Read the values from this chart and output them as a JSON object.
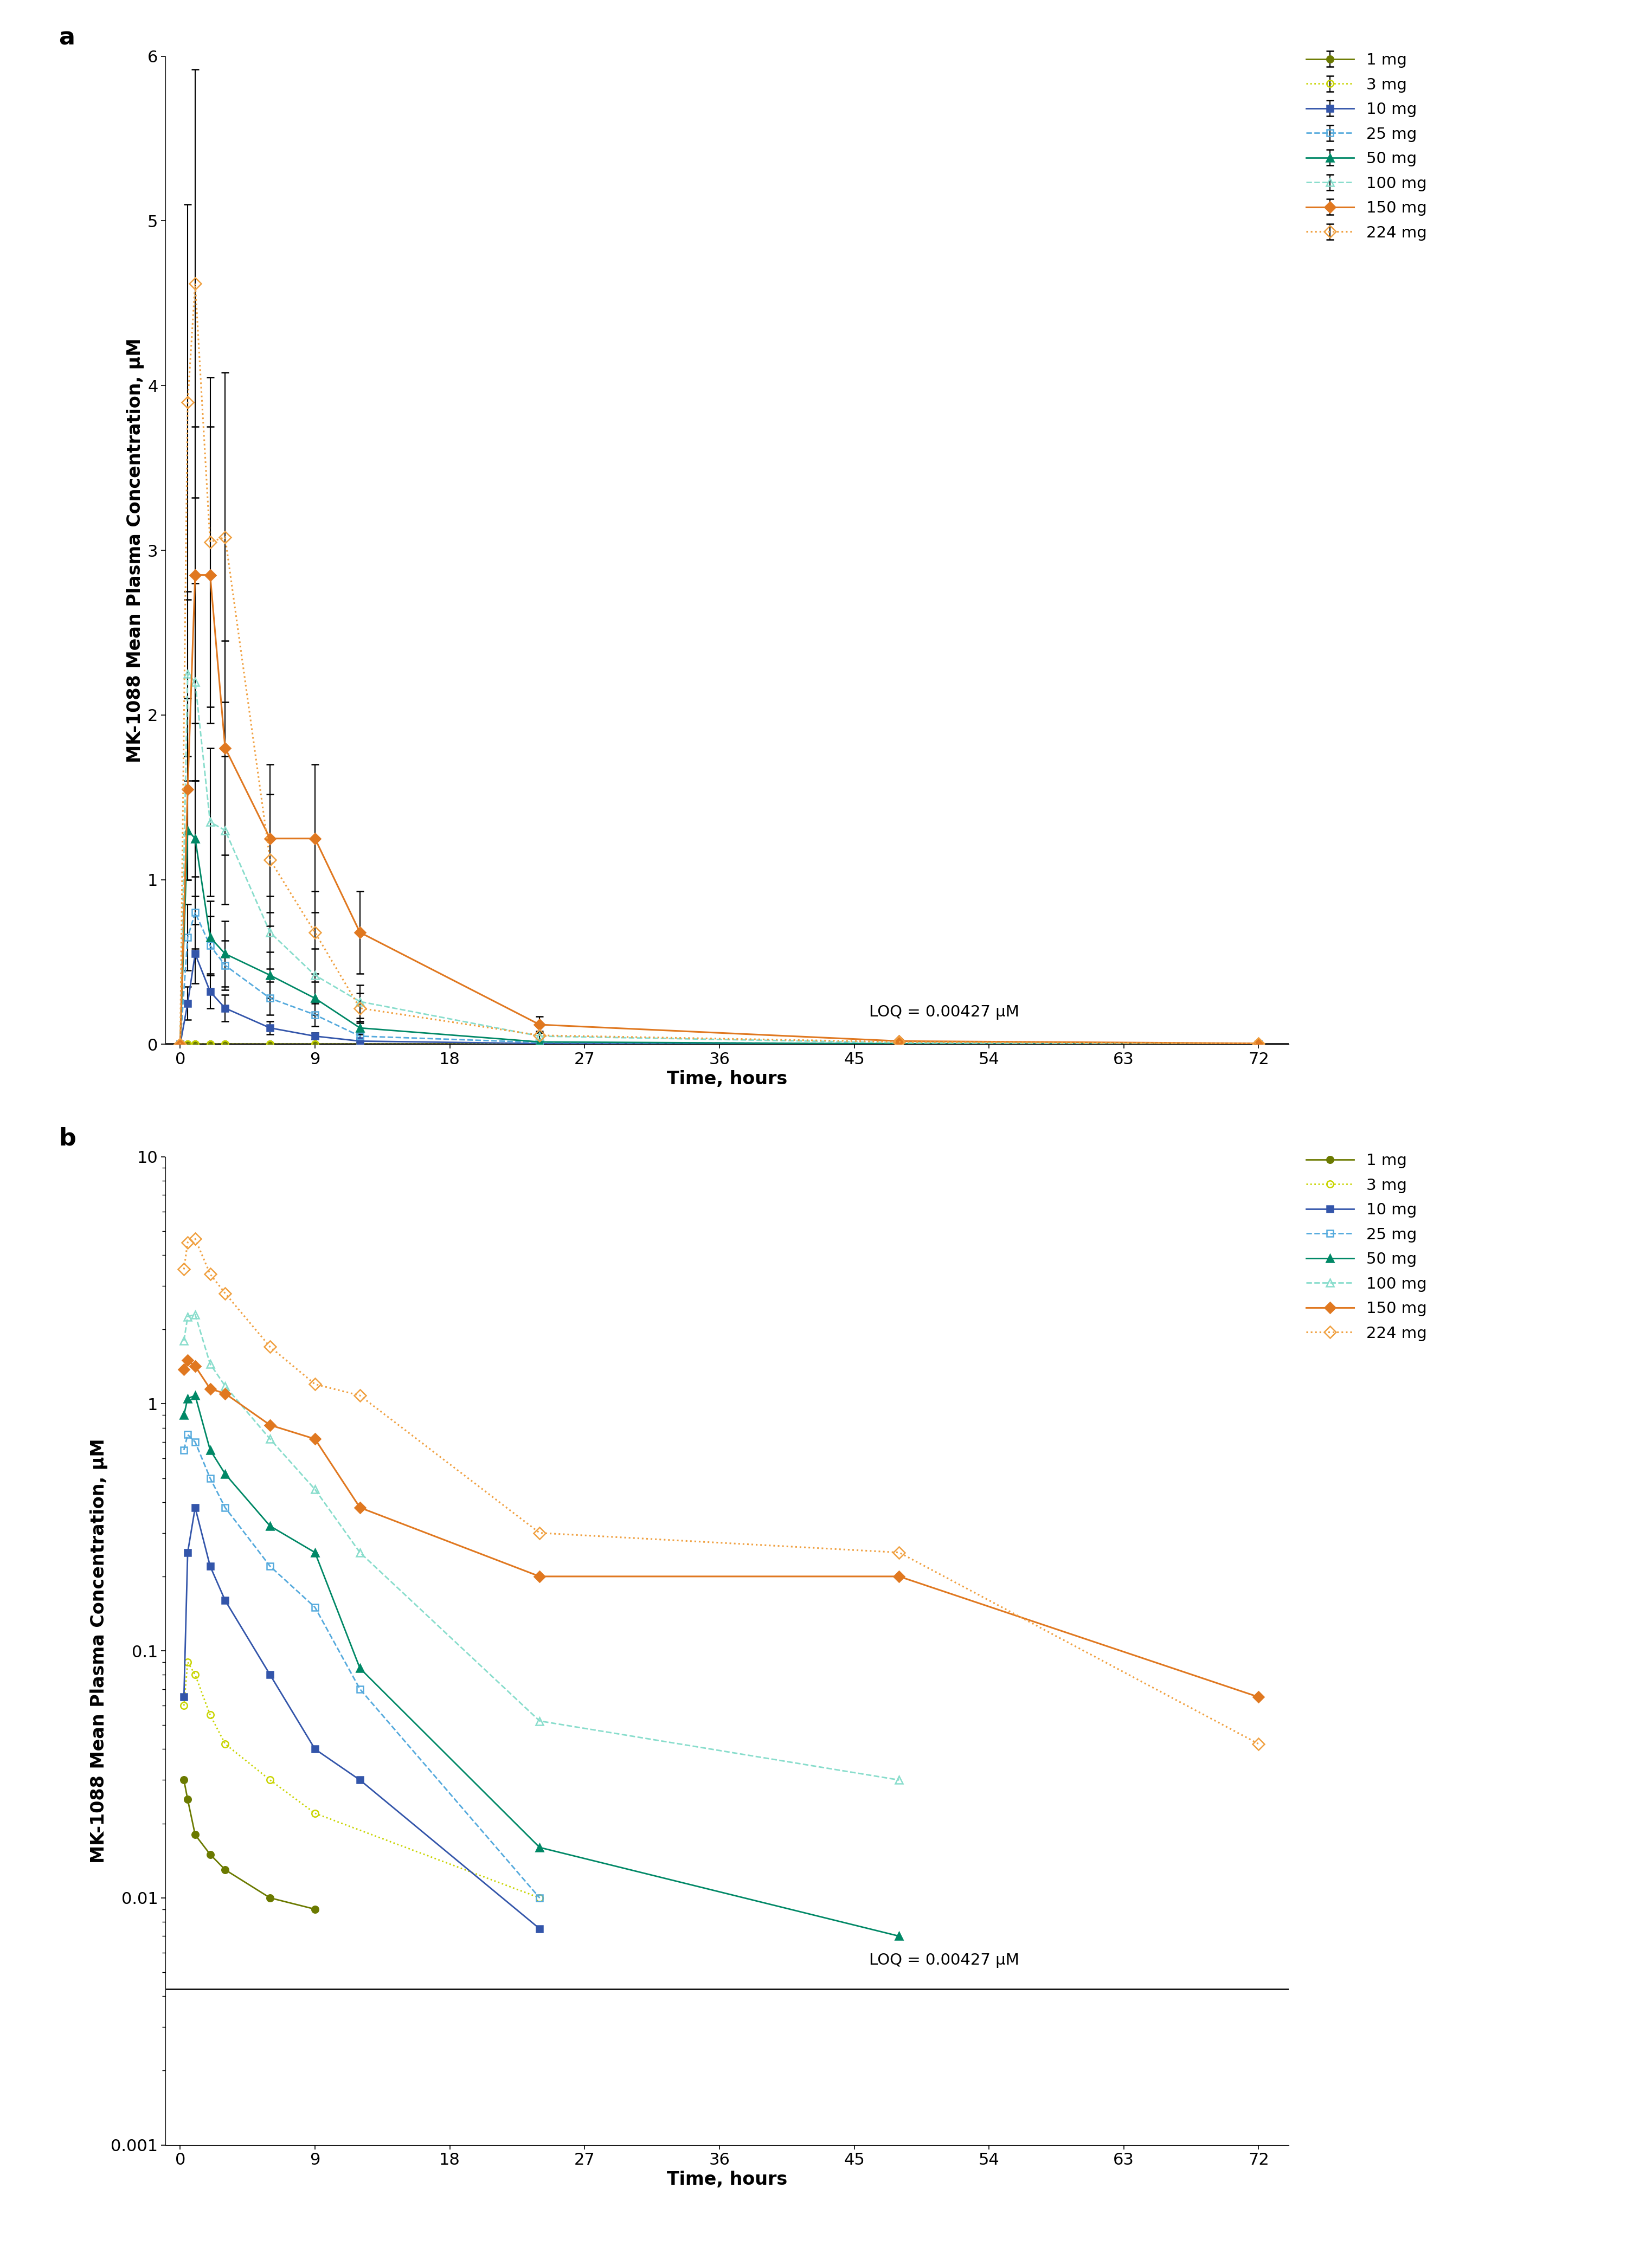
{
  "panel_a": {
    "series": [
      {
        "label": "1 mg",
        "color": "#6b7a00",
        "linestyle": "-",
        "marker": "o",
        "filled": true,
        "markersize": 9,
        "linewidth": 2.0,
        "times": [
          0,
          0.5,
          1,
          2,
          3,
          6,
          9,
          12,
          24,
          48,
          72
        ],
        "conc": [
          0.0,
          0.0,
          0.0,
          0.0,
          0.0,
          0.0,
          0.0,
          0.0,
          0.0,
          0.0,
          0.0
        ],
        "yerr": [
          0.0,
          0.0,
          0.0,
          0.0,
          0.0,
          0.0,
          0.0,
          0.0,
          0.0,
          0.0,
          0.0
        ]
      },
      {
        "label": "3 mg",
        "color": "#c8d400",
        "linestyle": ":",
        "marker": "o",
        "filled": false,
        "markersize": 9,
        "linewidth": 2.0,
        "times": [
          0,
          0.5,
          1,
          2,
          3,
          6,
          9,
          12,
          24,
          48,
          72
        ],
        "conc": [
          0.0,
          0.0,
          0.0,
          0.0,
          0.0,
          0.0,
          0.0,
          0.0,
          0.0,
          0.0,
          0.0
        ],
        "yerr": [
          0.0,
          0.0,
          0.0,
          0.0,
          0.0,
          0.0,
          0.0,
          0.0,
          0.0,
          0.0,
          0.0
        ]
      },
      {
        "label": "10 mg",
        "color": "#3355aa",
        "linestyle": "-",
        "marker": "s",
        "filled": true,
        "markersize": 9,
        "linewidth": 2.0,
        "times": [
          0,
          0.5,
          1,
          2,
          3,
          6,
          9,
          12,
          24,
          48,
          72
        ],
        "conc": [
          0.0,
          0.25,
          0.55,
          0.32,
          0.22,
          0.1,
          0.05,
          0.02,
          0.005,
          0.0,
          0.0
        ],
        "yerr": [
          0.0,
          0.1,
          0.18,
          0.1,
          0.08,
          0.04,
          0.02,
          0.01,
          0.002,
          0.0,
          0.0
        ]
      },
      {
        "label": "25 mg",
        "color": "#55aadd",
        "linestyle": "--",
        "marker": "s",
        "filled": false,
        "markersize": 9,
        "linewidth": 2.0,
        "times": [
          0,
          0.5,
          1,
          2,
          3,
          6,
          9,
          12,
          24,
          48,
          72
        ],
        "conc": [
          0.0,
          0.65,
          0.8,
          0.6,
          0.48,
          0.28,
          0.18,
          0.05,
          0.012,
          0.005,
          0.0
        ],
        "yerr": [
          0.0,
          0.2,
          0.22,
          0.18,
          0.15,
          0.1,
          0.07,
          0.02,
          0.005,
          0.002,
          0.0
        ]
      },
      {
        "label": "50 mg",
        "color": "#008866",
        "linestyle": "-",
        "marker": "^",
        "filled": true,
        "markersize": 10,
        "linewidth": 2.0,
        "times": [
          0,
          0.5,
          1,
          2,
          3,
          6,
          9,
          12,
          24,
          48,
          72
        ],
        "conc": [
          0.0,
          1.3,
          1.25,
          0.65,
          0.55,
          0.42,
          0.28,
          0.1,
          0.015,
          0.003,
          0.0
        ],
        "yerr": [
          0.0,
          0.3,
          0.35,
          0.22,
          0.2,
          0.14,
          0.1,
          0.04,
          0.006,
          0.001,
          0.0
        ]
      },
      {
        "label": "100 mg",
        "color": "#88ddcc",
        "linestyle": "--",
        "marker": "^",
        "filled": false,
        "markersize": 10,
        "linewidth": 2.0,
        "times": [
          0,
          0.5,
          1,
          2,
          3,
          6,
          9,
          12,
          24,
          48,
          72
        ],
        "conc": [
          0.0,
          2.25,
          2.2,
          1.35,
          1.3,
          0.68,
          0.42,
          0.26,
          0.05,
          0.01,
          0.0
        ],
        "yerr": [
          0.0,
          0.5,
          0.6,
          0.45,
          0.45,
          0.22,
          0.16,
          0.1,
          0.02,
          0.004,
          0.0
        ]
      },
      {
        "label": "150 mg",
        "color": "#e07820",
        "linestyle": "-",
        "marker": "D",
        "filled": true,
        "markersize": 10,
        "linewidth": 2.2,
        "times": [
          0,
          0.5,
          1,
          2,
          3,
          6,
          9,
          12,
          24,
          48,
          72
        ],
        "conc": [
          0.0,
          1.55,
          2.85,
          2.85,
          1.8,
          1.25,
          1.25,
          0.68,
          0.12,
          0.02,
          0.006
        ],
        "yerr": [
          0.0,
          0.55,
          0.9,
          0.9,
          0.65,
          0.45,
          0.45,
          0.25,
          0.05,
          0.008,
          0.003
        ]
      },
      {
        "label": "224 mg",
        "color": "#f0a040",
        "linestyle": ":",
        "marker": "D",
        "filled": false,
        "markersize": 11,
        "linewidth": 2.2,
        "times": [
          0,
          0.5,
          1,
          2,
          3,
          6,
          9,
          12,
          24,
          48,
          72
        ],
        "conc": [
          0.0,
          3.9,
          4.62,
          3.05,
          3.08,
          1.12,
          0.68,
          0.22,
          0.055,
          0.015,
          0.005
        ],
        "yerr": [
          0.0,
          1.2,
          1.3,
          1.0,
          1.0,
          0.4,
          0.25,
          0.09,
          0.025,
          0.007,
          0.002
        ]
      }
    ],
    "ylabel": "MK-1088 Mean Plasma Concentration, μM",
    "xlabel": "Time, hours",
    "ylim": [
      0,
      6
    ],
    "yticks": [
      0,
      1,
      2,
      3,
      4,
      5,
      6
    ],
    "xticks": [
      0,
      9,
      18,
      27,
      36,
      45,
      54,
      63,
      72
    ],
    "xticklabels": [
      "0",
      "9",
      "18",
      "27",
      "36",
      "45",
      "54",
      "63",
      "72"
    ],
    "loq": 0.00427,
    "loq_label": "LOQ = 0.00427 μM",
    "loq_x": 46,
    "loq_y": 0.15
  },
  "panel_b": {
    "series": [
      {
        "label": "1 mg",
        "color": "#6b7a00",
        "linestyle": "-",
        "marker": "o",
        "filled": true,
        "markersize": 9,
        "linewidth": 2.0,
        "times": [
          0.25,
          0.5,
          1,
          2,
          3,
          6,
          9
        ],
        "conc": [
          0.03,
          0.025,
          0.018,
          0.015,
          0.013,
          0.01,
          0.009
        ]
      },
      {
        "label": "3 mg",
        "color": "#c8d400",
        "linestyle": ":",
        "marker": "o",
        "filled": false,
        "markersize": 9,
        "linewidth": 2.0,
        "times": [
          0.25,
          0.5,
          1,
          2,
          3,
          6,
          9,
          24
        ],
        "conc": [
          0.06,
          0.09,
          0.08,
          0.055,
          0.042,
          0.03,
          0.022,
          0.01
        ]
      },
      {
        "label": "10 mg",
        "color": "#3355aa",
        "linestyle": "-",
        "marker": "s",
        "filled": true,
        "markersize": 9,
        "linewidth": 2.0,
        "times": [
          0.25,
          0.5,
          1,
          2,
          3,
          6,
          9,
          12,
          24,
          48
        ],
        "conc": [
          0.065,
          0.25,
          0.38,
          0.22,
          0.16,
          0.08,
          0.04,
          0.03,
          0.0075,
          null
        ]
      },
      {
        "label": "25 mg",
        "color": "#55aadd",
        "linestyle": "--",
        "marker": "s",
        "filled": false,
        "markersize": 9,
        "linewidth": 2.0,
        "times": [
          0.25,
          0.5,
          1,
          2,
          3,
          6,
          9,
          12,
          24,
          48
        ],
        "conc": [
          0.65,
          0.75,
          0.7,
          0.5,
          0.38,
          0.22,
          0.15,
          0.07,
          0.01,
          null
        ]
      },
      {
        "label": "50 mg",
        "color": "#008866",
        "linestyle": "-",
        "marker": "^",
        "filled": true,
        "markersize": 10,
        "linewidth": 2.0,
        "times": [
          0.25,
          0.5,
          1,
          2,
          3,
          6,
          9,
          12,
          24,
          48,
          72
        ],
        "conc": [
          0.9,
          1.05,
          1.08,
          0.65,
          0.52,
          0.32,
          0.25,
          0.085,
          0.016,
          0.007,
          null
        ]
      },
      {
        "label": "100 mg",
        "color": "#88ddcc",
        "linestyle": "--",
        "marker": "^",
        "filled": false,
        "markersize": 10,
        "linewidth": 2.0,
        "times": [
          0.25,
          0.5,
          1,
          2,
          3,
          6,
          9,
          12,
          24,
          48,
          72
        ],
        "conc": [
          1.8,
          2.25,
          2.3,
          1.45,
          1.18,
          0.72,
          0.45,
          0.25,
          0.052,
          0.03,
          null
        ]
      },
      {
        "label": "150 mg",
        "color": "#e07820",
        "linestyle": "-",
        "marker": "D",
        "filled": true,
        "markersize": 10,
        "linewidth": 2.2,
        "times": [
          0.25,
          0.5,
          1,
          2,
          3,
          6,
          9,
          12,
          24,
          48,
          72
        ],
        "conc": [
          1.38,
          1.5,
          1.42,
          1.15,
          1.1,
          0.82,
          0.72,
          0.38,
          0.2,
          0.2,
          0.065
        ]
      },
      {
        "label": "224 mg",
        "color": "#f0a040",
        "linestyle": ":",
        "marker": "D",
        "filled": false,
        "markersize": 11,
        "linewidth": 2.2,
        "times": [
          0.25,
          0.5,
          1,
          2,
          3,
          6,
          9,
          12,
          24,
          48,
          72
        ],
        "conc": [
          3.5,
          4.5,
          4.65,
          3.35,
          2.8,
          1.7,
          1.2,
          1.08,
          0.3,
          0.25,
          0.042
        ]
      }
    ],
    "ylabel": "MK-1088 Mean Plasma Concentration, μM",
    "xlabel": "Time, hours",
    "ylim": [
      0.001,
      10
    ],
    "yticks": [
      0.001,
      0.01,
      0.1,
      1,
      10
    ],
    "yticklabels": [
      "0.001",
      "0.01",
      "0.1",
      "1",
      "10"
    ],
    "xticks": [
      0,
      9,
      18,
      27,
      36,
      45,
      54,
      63,
      72
    ],
    "xticklabels": [
      "0",
      "9",
      "18",
      "27",
      "36",
      "45",
      "54",
      "63",
      "72"
    ],
    "loq": 0.00427,
    "loq_label": "LOQ = 0.00427 μM",
    "loq_x": 46,
    "loq_y": 0.0052
  },
  "tick_fontsize": 22,
  "label_fontsize": 24,
  "legend_fontsize": 21,
  "panel_label_fontsize": 32
}
